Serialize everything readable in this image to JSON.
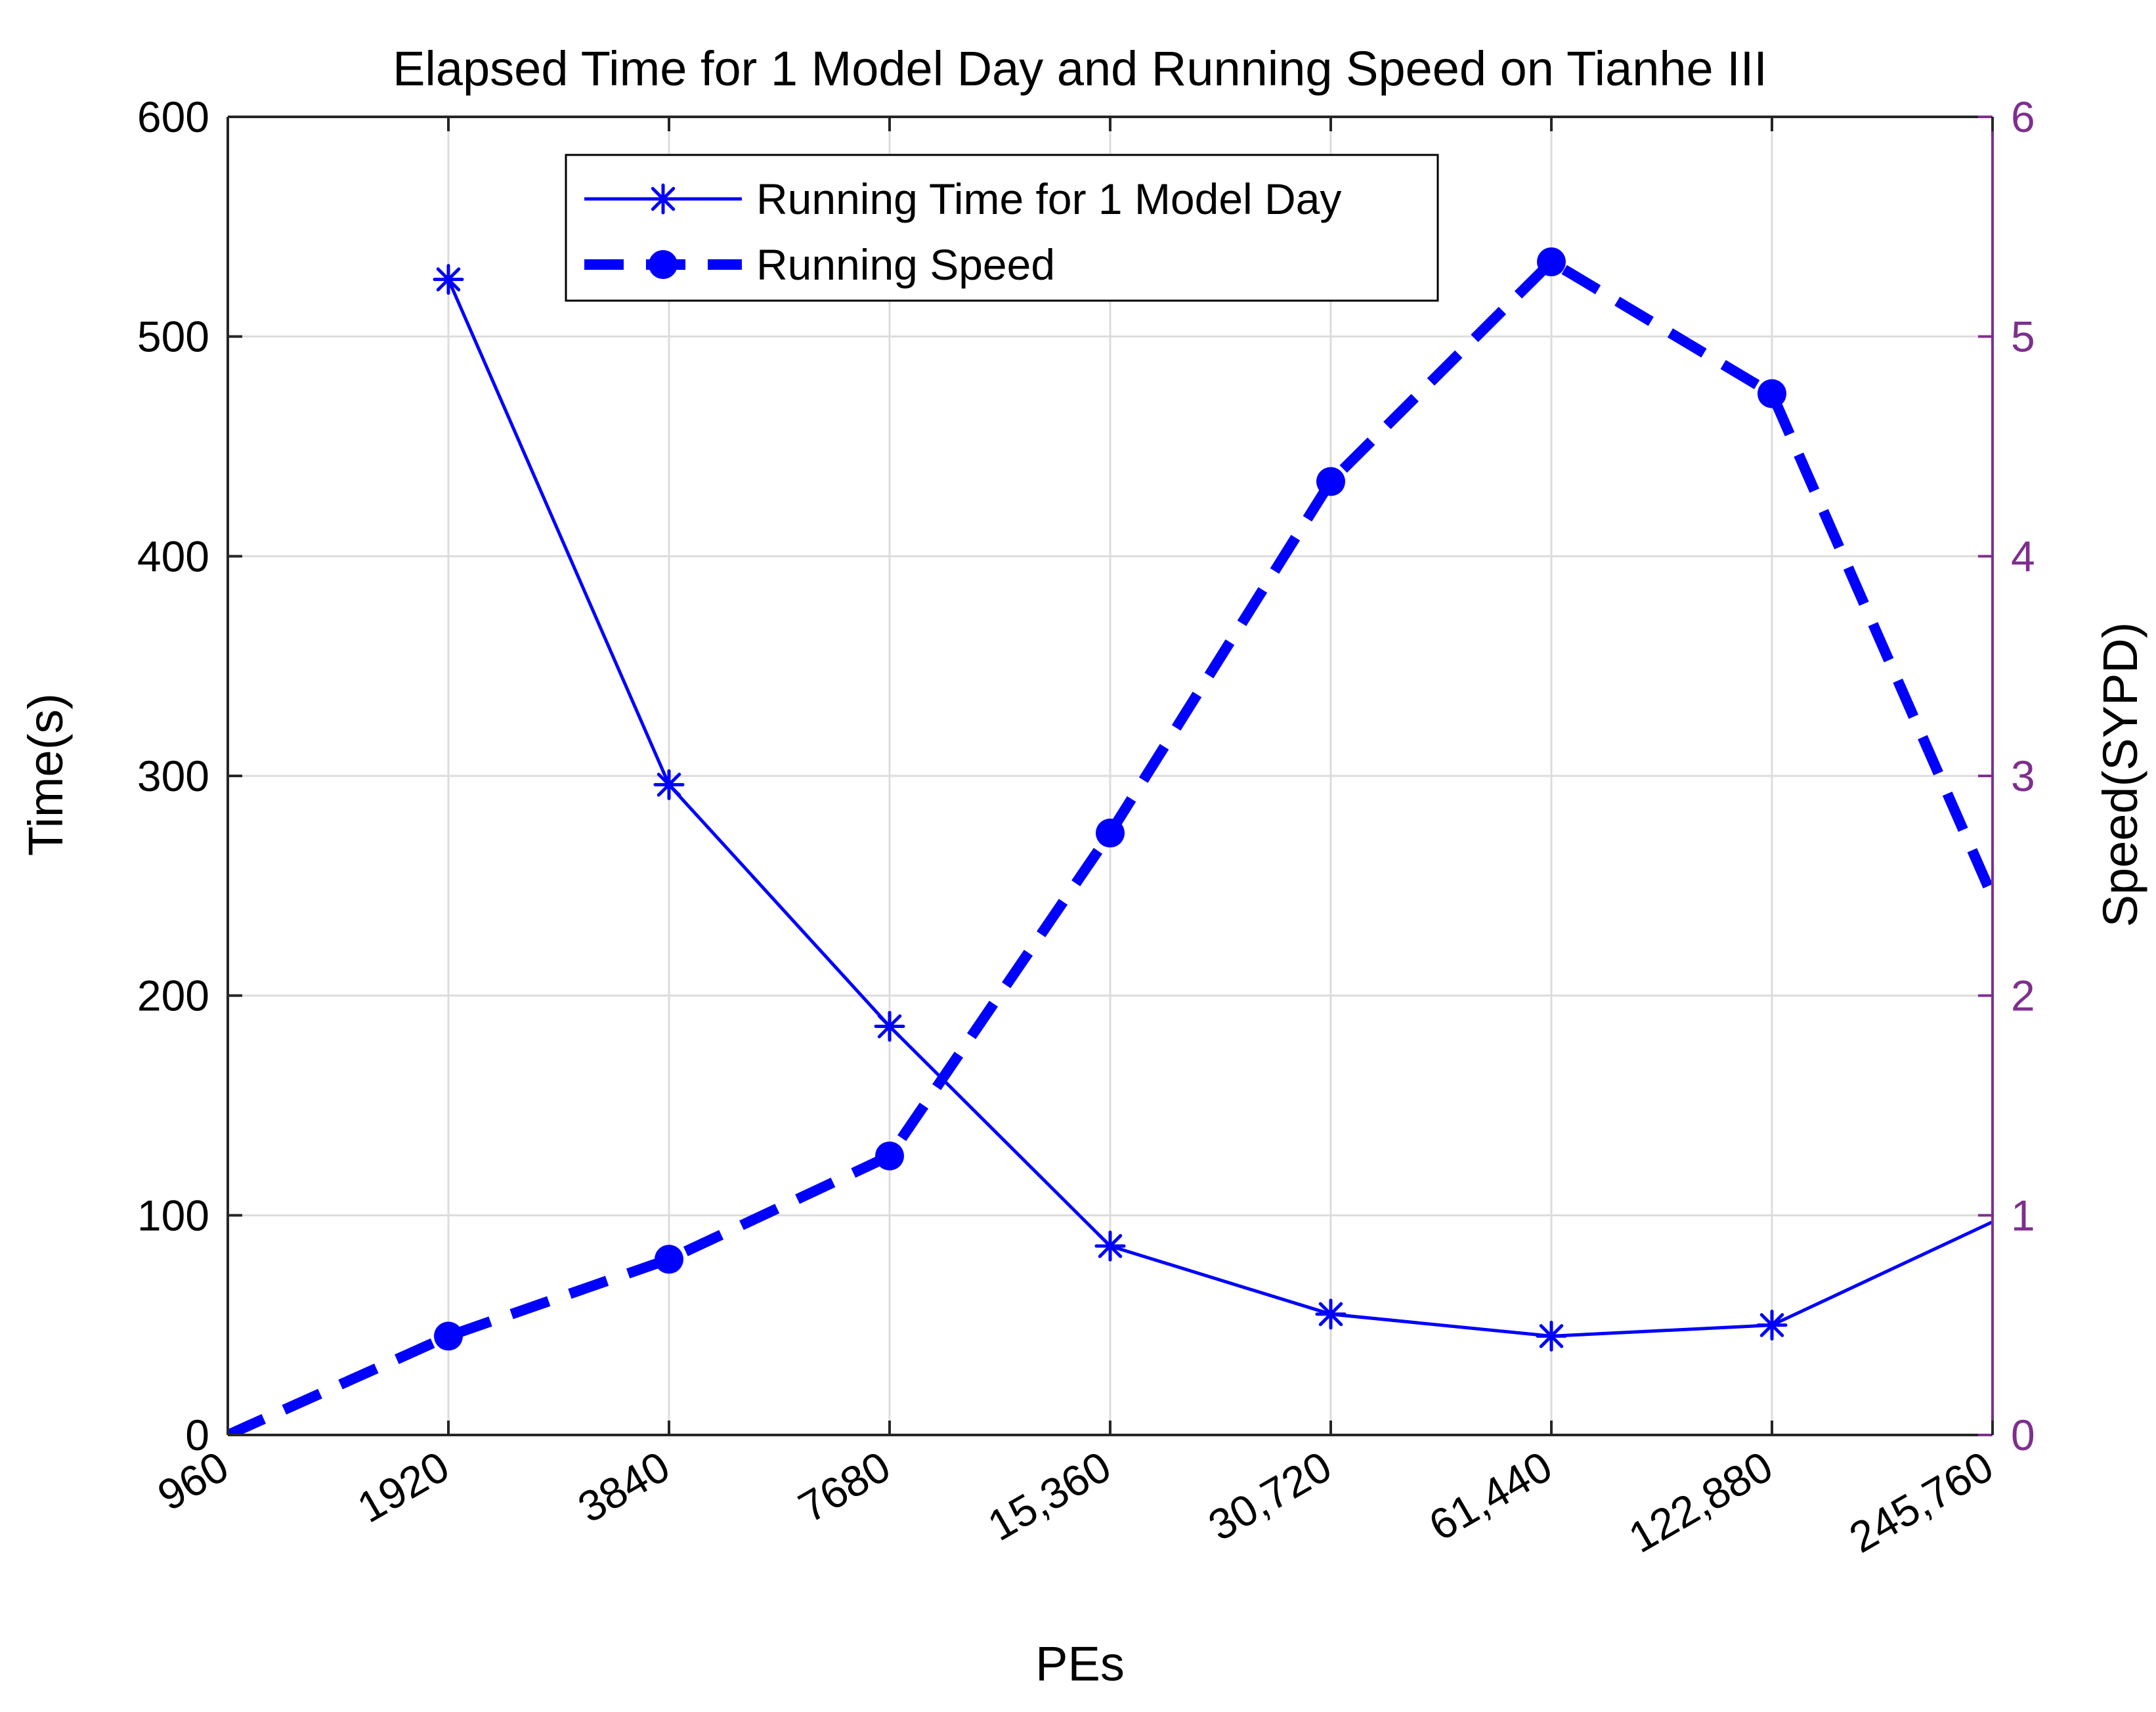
{
  "chart_data": {
    "type": "line",
    "title": "Elapsed Time for 1 Model Day and Running Speed on Tianhe III",
    "xlabel": "PEs",
    "ylabel_left": "Time(s)",
    "ylabel_right": "Speed(SYPD)",
    "categories": [
      "960",
      "1920",
      "3840",
      "7680",
      "15,360",
      "30,720",
      "61,440",
      "122,880",
      "245,760"
    ],
    "ylim_left": [
      0,
      600
    ],
    "yticks_left": [
      "0",
      "100",
      "200",
      "300",
      "400",
      "500",
      "600"
    ],
    "ylim_right": [
      0,
      6
    ],
    "yticks_right": [
      "0",
      "1",
      "2",
      "3",
      "4",
      "5",
      "6"
    ],
    "grid": true,
    "legend_position": "top-center",
    "colors": {
      "series": "#0000ff",
      "right_axis": "#7e2f8e",
      "grid": "#dcdcdc",
      "axis": "#262626"
    },
    "series": [
      {
        "name": "Running Time for 1 Model Day",
        "axis": "left",
        "style": "solid",
        "marker": "asterisk",
        "values": [
          null,
          526,
          296,
          186,
          86,
          55,
          45,
          50,
          97
        ],
        "markers_shown": [
          false,
          true,
          true,
          true,
          true,
          true,
          true,
          true,
          false
        ]
      },
      {
        "name": "Running Speed",
        "axis": "right",
        "style": "dashed",
        "marker": "circle",
        "values": [
          0,
          0.45,
          0.8,
          1.27,
          2.74,
          4.34,
          5.34,
          4.74,
          2.45
        ],
        "markers_shown": [
          false,
          true,
          true,
          true,
          true,
          true,
          true,
          true,
          false
        ]
      }
    ]
  }
}
